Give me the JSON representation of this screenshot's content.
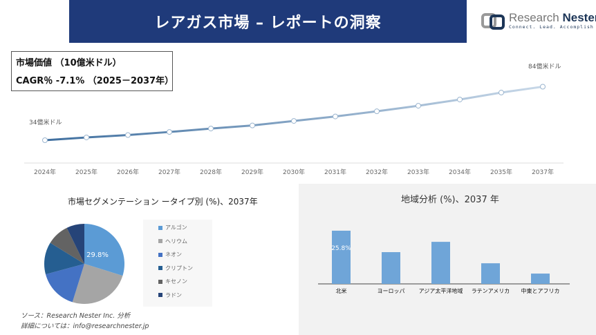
{
  "header": {
    "title": "レアガス市場 – レポートの洞察"
  },
  "logo": {
    "name_light": "Research ",
    "name_dark": "Nester",
    "tagline": "Connect. Lead. Accomplish"
  },
  "info": {
    "market_value": "市場価値 （10億米ドル）",
    "cagr": "CAGR％ -7.1% （2025－2037年）"
  },
  "source": {
    "line1": "ソース：Research Nester Inc. 分析",
    "line2": "詳細については：info@researchnester.jp"
  },
  "colors": {
    "header": "#1f3a7a",
    "bar": "#6fa5d8"
  },
  "chart_data": [
    {
      "type": "line",
      "categories": [
        "2024年",
        "2025年",
        "2026年",
        "2027年",
        "2028年",
        "2029年",
        "2030年",
        "2031年",
        "2032年",
        "2033年",
        "2034年",
        "2035年",
        "2037年"
      ],
      "values": [
        34,
        36.6,
        38.8,
        41.7,
        44.9,
        47.8,
        52,
        56.2,
        61,
        66.2,
        72,
        78.5,
        84
      ],
      "annotations": {
        "start": "34億米ドル",
        "end": "84億米ドル"
      },
      "grid": false
    },
    {
      "type": "pie",
      "title": "市場セグメンテーション ータイプ別 (%)、2037年",
      "labels": [
        "アルゴン",
        "ヘリウム",
        "ネオン",
        "クリプトン",
        "キセノン",
        "ラドン"
      ],
      "values": [
        29.8,
        25,
        16,
        13,
        9,
        7.2
      ],
      "colors": [
        "#5b9bd5",
        "#a5a5a5",
        "#4472c4",
        "#255e91",
        "#636363",
        "#264478"
      ],
      "data_label": "29.8%",
      "legend": "right"
    },
    {
      "type": "bar",
      "title": "地域分析 (%)、2037 年",
      "categories": [
        "北米",
        "ヨーロッパ",
        "アジア太平洋地域",
        "ラテンアメリカ",
        "中東とアフリカ"
      ],
      "values": [
        25.8,
        15.4,
        20.4,
        10,
        5
      ],
      "data_label": "25.8%"
    }
  ]
}
